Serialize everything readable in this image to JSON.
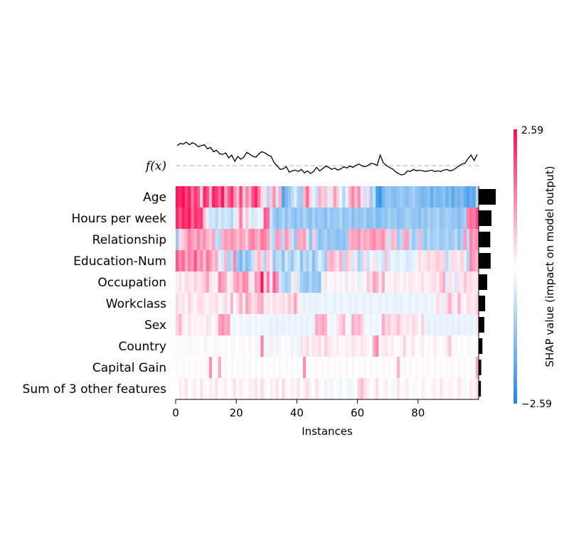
{
  "chart_data": {
    "type": "heatmap",
    "title": "",
    "xlabel": "Instances",
    "ylabel": "",
    "xlim": [
      0,
      100
    ],
    "x_ticks": [
      "0",
      "20",
      "40",
      "60",
      "80"
    ],
    "fx_label": "f(x)",
    "features": [
      "Age",
      "Hours per week",
      "Relationship",
      "Education-Num",
      "Occupation",
      "Workclass",
      "Sex",
      "Country",
      "Capital Gain",
      "Sum of 3 other features"
    ],
    "mean_abs_shap": [
      1.0,
      0.75,
      0.68,
      0.7,
      0.5,
      0.38,
      0.33,
      0.22,
      0.15,
      0.13
    ],
    "colorbar": {
      "label": "SHAP value (impact on model output)",
      "min": -2.59,
      "max": 2.59,
      "min_label": "−2.59",
      "max_label": "2.59",
      "low_color": "#1e88e5",
      "mid_color": "#ffffff",
      "high_color": "#ff0d57"
    },
    "fx_values": [
      3.2,
      3.5,
      3.4,
      3.7,
      3.3,
      3.6,
      3.4,
      3.0,
      3.2,
      3.3,
      2.7,
      2.9,
      2.3,
      2.5,
      2.0,
      1.9,
      2.1,
      1.4,
      1.8,
      0.9,
      1.6,
      1.2,
      1.5,
      2.2,
      1.9,
      1.6,
      1.5,
      2.0,
      2.3,
      2.1,
      1.8,
      1.6,
      0.7,
      0.2,
      -0.3,
      -0.2,
      0.1,
      -0.7,
      -0.5,
      -0.4,
      -0.6,
      -0.3,
      -0.8,
      -0.5,
      -0.9,
      -0.6,
      0.0,
      -0.5,
      -0.2,
      0.2,
      0.0,
      -0.3,
      -0.1,
      -0.4,
      -0.2,
      0.1,
      -0.1,
      0.2,
      0.0,
      0.3,
      0.5,
      0.2,
      0.1,
      0.3,
      0.6,
      0.5,
      0.3,
      1.8,
      0.7,
      0.3,
      0.0,
      -0.2,
      -0.6,
      -0.9,
      -1.1,
      -1.0,
      -0.5,
      -0.6,
      -0.3,
      -0.5,
      -0.4,
      -0.5,
      -0.6,
      -0.5,
      -0.4,
      -0.6,
      -0.5,
      -0.6,
      -0.4,
      -0.3,
      -0.5,
      -0.4,
      -0.1,
      0.2,
      0.5,
      0.6,
      1.3,
      1.8,
      1.0,
      1.9
    ],
    "shap_values": [
      [
        2.5,
        2.3,
        2.6,
        2.0,
        2.4,
        1.5,
        2.2,
        1.8,
        0.5,
        2.3,
        1.9,
        0.8,
        2.4,
        2.1,
        1.6,
        2.5,
        0.9,
        1.7,
        2.2,
        1.2,
        0.7,
        2.0,
        0.6,
        1.3,
        0.8,
        1.9,
        2.3,
        1.4,
        0.4,
        0.3,
        -0.9,
        0.6,
        1.2,
        -0.5,
        0.9,
        -2.0,
        -1.5,
        -1.2,
        -0.8,
        -0.4,
        -1.0,
        -1.1,
        0.8,
        1.6,
        0.4,
        -0.3,
        -0.6,
        0.9,
        0.5,
        0.7,
        -0.4,
        0.3,
        1.1,
        0.5,
        -0.2,
        -0.9,
        -0.3,
        0.8,
        1.3,
        0.7,
        1.2,
        0.3,
        -0.6,
        0.4,
        -1.1,
        -0.7,
        -2.1,
        -2.3,
        -1.6,
        -1.3,
        -1.2,
        -1.4,
        -1.5,
        -1.3,
        -1.1,
        -1.3,
        -1.4,
        -1.2,
        -1.0,
        -1.3,
        -1.4,
        -1.6,
        -1.5,
        -1.3,
        -1.8,
        -1.4,
        -1.6,
        -1.5,
        -1.3,
        -1.7,
        -1.4,
        -1.9,
        -1.5,
        -1.6,
        -1.4,
        -1.8,
        -2.0,
        -1.7,
        -1.9,
        -0.8
      ],
      [
        2.3,
        1.8,
        2.4,
        2.1,
        2.5,
        1.6,
        2.2,
        2.0,
        2.1,
        0.7,
        -0.3,
        -0.6,
        -0.5,
        -0.8,
        -0.4,
        -0.7,
        -0.5,
        -0.6,
        -0.9,
        -0.4,
        0.4,
        1.4,
        0.2,
        0.6,
        -0.3,
        -0.5,
        -0.4,
        -0.2,
        -0.3,
        1.8,
        1.5,
        -0.6,
        -1.1,
        -1.4,
        -1.2,
        -0.9,
        -1.3,
        -1.0,
        -1.2,
        -1.4,
        -1.1,
        -1.3,
        -0.9,
        -1.2,
        -1.4,
        -1.0,
        -1.3,
        -1.1,
        -1.2,
        -1.4,
        -1.0,
        -1.3,
        -1.1,
        -1.2,
        -0.9,
        -1.3,
        -1.2,
        -1.0,
        -1.4,
        -1.1,
        -1.3,
        -1.2,
        -1.0,
        -1.4,
        -1.3,
        -1.1,
        -1.5,
        -1.4,
        -1.2,
        -1.3,
        -1.0,
        -1.2,
        -1.1,
        -1.4,
        -1.3,
        -1.2,
        -1.0,
        -1.1,
        -1.3,
        -1.2,
        -1.4,
        -1.1,
        -1.3,
        -1.0,
        -1.2,
        -1.1,
        -0.9,
        -1.3,
        -1.2,
        -1.0,
        -1.1,
        -1.3,
        -1.2,
        -1.4,
        -1.2,
        -1.0,
        1.3,
        1.6,
        1.4,
        1.9
      ],
      [
        -1.2,
        0.4,
        0.6,
        0.9,
        1.4,
        1.1,
        0.8,
        1.3,
        0.9,
        1.2,
        0.8,
        0.6,
        1.0,
        -0.7,
        -0.9,
        0.8,
        1.1,
        0.9,
        1.2,
        1.0,
        0.7,
        1.1,
        0.9,
        0.5,
        1.2,
        1.4,
        1.0,
        0.8,
        1.5,
        1.3,
        1.0,
        -0.6,
        -0.9,
        1.1,
        0.9,
        -0.8,
        1.2,
        0.7,
        -0.6,
        -1.2,
        1.0,
        0.8,
        1.1,
        -0.5,
        -1.3,
        0.6,
        -0.9,
        -1.4,
        -1.2,
        -1.0,
        -1.3,
        -1.1,
        -1.2,
        -1.4,
        -1.2,
        -1.3,
        -1.1,
        0.8,
        1.0,
        0.9,
        1.2,
        0.7,
        1.0,
        0.8,
        1.1,
        1.3,
        0.9,
        1.0,
        1.2,
        0.6,
        -0.6,
        0.8,
        0.7,
        -1.1,
        -0.8,
        0.9,
        1.0,
        -0.7,
        -1.2,
        -0.9,
        0.8,
        -1.0,
        -1.2,
        -0.8,
        -1.1,
        -1.0,
        -0.9,
        -1.2,
        -1.1,
        -0.9,
        -1.2,
        -1.1,
        -0.8,
        -1.3,
        -1.0,
        1.1,
        -0.8,
        1.3,
        1.0,
        1.2
      ],
      [
        1.8,
        1.2,
        1.6,
        0.9,
        1.4,
        1.1,
        1.8,
        1.0,
        1.3,
        0.7,
        1.5,
        1.1,
        0.6,
        0.9,
        -0.3,
        -0.5,
        0.8,
        -1.0,
        -0.8,
        1.3,
        -1.2,
        -1.6,
        -0.9,
        -1.4,
        -1.1,
        -0.6,
        0.4,
        0.8,
        0.5,
        -0.9,
        0.6,
        0.3,
        -1.2,
        -0.8,
        -0.7,
        -1.3,
        -0.5,
        -0.9,
        -1.2,
        -0.6,
        -0.4,
        -1.3,
        -0.7,
        -1.0,
        -0.6,
        -1.4,
        -0.9,
        -0.4,
        -0.7,
        -1.1,
        0.7,
        0.9,
        0.6,
        0.3,
        0.9,
        -0.8,
        0.7,
        0.4,
        -0.5,
        0.3,
        -1.0,
        -0.7,
        0.4,
        -0.6,
        -0.2,
        0.3,
        -0.4,
        -0.3,
        -0.6,
        0.7,
        -0.5,
        -0.2,
        -0.3,
        -0.4,
        -0.2,
        -0.3,
        -0.5,
        -0.4,
        -0.3,
        -0.2,
        0.4,
        0.2,
        0.3,
        0.5,
        0.3,
        0.4,
        0.6,
        0.4,
        0.5,
        -0.8,
        -0.4,
        0.4,
        0.3,
        0.2,
        0.5,
        -0.3,
        -0.9,
        1.3,
        1.0,
        0.8
      ],
      [
        0.2,
        0.3,
        0.1,
        0.4,
        0.3,
        0.2,
        0.5,
        0.3,
        0.4,
        0.6,
        1.0,
        0.3,
        0.2,
        0.1,
        1.3,
        1.0,
        0.8,
        -0.2,
        0.3,
        0.9,
        1.1,
        0.7,
        1.3,
        1.2,
        0.3,
        -0.3,
        1.1,
        0.9,
        2.5,
        0.4,
        1.4,
        -0.4,
        1.7,
        1.2,
        -0.6,
        -0.8,
        -1.1,
        -0.9,
        -0.3,
        0.3,
        -0.5,
        -1.0,
        -1.2,
        -1.3,
        -0.9,
        -1.2,
        -1.1,
        -1.3,
        -0.2,
        0.3,
        0.1,
        -0.1,
        0.2,
        0.1,
        -0.2,
        0.1,
        0.3,
        -0.1,
        0.2,
        0.1,
        -0.3,
        0.2,
        -0.1,
        0.6,
        0.3,
        1.0,
        0.8,
        0.2,
        0.9,
        -0.1,
        0.2,
        0.1,
        0.3,
        0.2,
        -0.1,
        0.2,
        0.1,
        0.3,
        0.2,
        0.1,
        0.2,
        0.4,
        0.1,
        0.2,
        0.3,
        0.4,
        0.2,
        0.6,
        0.9,
        -0.4,
        0.3,
        0.2,
        -0.5,
        0.3,
        0.2,
        0.6,
        0.3,
        0.4,
        0.2,
        0.3
      ],
      [
        0.4,
        0.2,
        0.3,
        0.1,
        0.5,
        0.2,
        0.1,
        0.3,
        0.4,
        0.2,
        0.1,
        0.3,
        0.2,
        0.4,
        0.1,
        -0.3,
        0.4,
        0.1,
        0.8,
        -0.1,
        0.3,
        0.9,
        0.2,
        1.0,
        0.7,
        0.3,
        0.5,
        0.8,
        0.9,
        0.2,
        0.3,
        0.1,
        0.4,
        0.2,
        0.3,
        0.4,
        0.2,
        0.6,
        0.3,
        1.0,
        0.2,
        -0.2,
        -0.3,
        -0.2,
        -0.3,
        -0.2,
        -0.3,
        -0.2,
        -0.2,
        -0.3,
        -0.2,
        -0.2,
        -0.3,
        -0.2,
        -0.3,
        -0.2,
        -0.2,
        -0.3,
        -0.2,
        -0.3,
        -0.2,
        -0.2,
        -0.3,
        -0.2,
        -0.3,
        -0.2,
        -0.2,
        -0.3,
        -0.2,
        -0.3,
        -0.2,
        -0.2,
        -0.3,
        -0.2,
        -0.3,
        -0.2,
        -0.2,
        -0.3,
        -0.2,
        -0.3,
        -0.2,
        -0.2,
        -0.3,
        -0.2,
        -0.3,
        -0.2,
        0.4,
        0.2,
        -0.3,
        0.4,
        0.9,
        0.3,
        -0.2,
        0.8,
        0.2,
        0.1,
        0.4,
        0.3,
        0.2,
        0.5
      ],
      [
        0.5,
        0.8,
        0.2,
        0.1,
        0.3,
        0.1,
        0.2,
        0.1,
        0.2,
        0.1,
        0.3,
        0.2,
        -0.1,
        0.2,
        1.0,
        1.2,
        0.9,
        1.0,
        -0.1,
        -0.2,
        -0.1,
        -0.2,
        -0.1,
        -0.2,
        -0.2,
        -0.1,
        -0.2,
        -0.1,
        -0.2,
        -0.2,
        -0.2,
        -0.3,
        -0.2,
        -0.3,
        -0.2,
        -0.3,
        -0.2,
        -0.3,
        -0.2,
        -0.3,
        -0.2,
        -0.3,
        -0.2,
        -0.3,
        -0.2,
        -0.3,
        0.9,
        0.7,
        1.0,
        0.8,
        -0.1,
        -0.2,
        -0.1,
        0.3,
        0.5,
        0.8,
        -0.1,
        -0.2,
        0.9,
        0.6,
        0.8,
        0.5,
        -0.2,
        -0.1,
        -0.2,
        -0.1,
        -0.2,
        -0.1,
        0.9,
        0.4,
        0.6,
        0.3,
        0.4,
        0.7,
        0.3,
        0.2,
        0.3,
        0.2,
        0.4,
        0.3,
        -0.1,
        0.5,
        -0.2,
        -0.3,
        -0.2,
        -0.3,
        -0.2,
        -0.3,
        -0.2,
        -0.3,
        -0.2,
        -0.3,
        -0.2,
        -0.3,
        -0.2,
        -0.3,
        -0.2,
        -0.3,
        -0.2,
        0.3
      ],
      [
        0.1,
        -0.1,
        0.1,
        -0.1,
        0.1,
        -0.1,
        0.1,
        0.1,
        0.0,
        0.1,
        -0.1,
        0.0,
        0.1,
        -0.1,
        0.1,
        0.0,
        0.1,
        0.0,
        -0.1,
        0.1,
        0.0,
        0.1,
        -0.1,
        0.0,
        0.1,
        0.0,
        0.1,
        -0.1,
        1.3,
        -0.1,
        -0.2,
        0.2,
        0.1,
        -0.2,
        0.1,
        0.0,
        -0.1,
        0.1,
        -0.2,
        -0.1,
        -0.2,
        0.3,
        0.2,
        0.4,
        0.1,
        0.3,
        0.2,
        0.4,
        0.1,
        0.5,
        0.3,
        0.2,
        -0.1,
        0.2,
        -0.1,
        0.1,
        0.2,
        0.1,
        0.3,
        0.2,
        0.1,
        0.3,
        0.2,
        0.1,
        0.0,
        0.9,
        1.3,
        0.1,
        0.2,
        0.3,
        0.1,
        0.2,
        0.0,
        0.1,
        -0.1,
        0.5,
        0.0,
        0.1,
        0.3,
        0.0,
        0.1,
        0.2,
        0.0,
        0.1,
        0.0,
        0.2,
        0.1,
        0.0,
        0.1,
        0.2,
        0.6,
        0.0,
        0.1,
        0.0,
        -0.1,
        0.0,
        0.1,
        -0.1,
        0.0,
        0.1
      ],
      [
        0.1,
        0.0,
        0.1,
        0.0,
        0.1,
        0.0,
        0.1,
        0.0,
        0.1,
        0.0,
        0.1,
        1.2,
        0.0,
        0.1,
        0.9,
        0.0,
        0.1,
        0.0,
        0.1,
        0.0,
        0.1,
        0.0,
        0.1,
        0.0,
        0.1,
        0.0,
        0.1,
        0.0,
        0.1,
        0.0,
        0.1,
        0.0,
        0.1,
        0.0,
        0.1,
        0.0,
        0.1,
        0.0,
        0.1,
        0.0,
        -0.1,
        0.0,
        1.2,
        0.0,
        0.1,
        0.0,
        0.1,
        0.0,
        0.1,
        0.0,
        0.1,
        0.0,
        0.1,
        0.0,
        0.1,
        0.0,
        0.1,
        0.0,
        0.1,
        0.0,
        0.1,
        0.0,
        0.1,
        0.0,
        0.1,
        0.0,
        0.1,
        0.0,
        0.1,
        0.0,
        0.1,
        0.0,
        0.1,
        0.8,
        0.0,
        0.1,
        0.0,
        0.1,
        0.0,
        0.1,
        0.0,
        0.1,
        0.0,
        0.1,
        0.0,
        0.1,
        0.0,
        0.1,
        0.0,
        0.1,
        0.0,
        0.1,
        0.0,
        0.1,
        0.0,
        0.1,
        0.0,
        0.1,
        0.0,
        0.9
      ],
      [
        0.0,
        0.2,
        0.1,
        0.3,
        0.0,
        0.1,
        0.2,
        0.0,
        0.3,
        0.1,
        0.0,
        0.2,
        0.1,
        0.3,
        0.0,
        0.1,
        0.2,
        0.0,
        0.1,
        0.3,
        0.0,
        0.2,
        0.1,
        0.0,
        0.2,
        0.1,
        0.3,
        0.0,
        0.4,
        0.1,
        0.0,
        0.2,
        0.1,
        0.3,
        0.0,
        0.4,
        0.1,
        0.0,
        0.2,
        0.1,
        0.3,
        0.0,
        0.2,
        0.4,
        0.1,
        0.0,
        0.3,
        0.1,
        0.0,
        -0.2,
        -0.1,
        -0.2,
        0.0,
        -0.1,
        -0.2,
        0.0,
        -0.1,
        -0.2,
        -0.1,
        0.0,
        0.5,
        0.7,
        0.3,
        0.2,
        0.0,
        0.1,
        0.4,
        0.0,
        -0.1,
        0.2,
        0.0,
        0.1,
        -0.1,
        0.3,
        0.0,
        0.1,
        0.2,
        0.0,
        -0.1,
        0.1,
        0.0,
        0.2,
        0.1,
        0.0,
        0.1,
        0.2,
        0.0,
        0.3,
        0.1,
        0.0,
        0.2,
        0.1,
        0.0,
        0.3,
        0.1,
        -0.1,
        0.0,
        0.2,
        0.1,
        0.4
      ]
    ]
  }
}
